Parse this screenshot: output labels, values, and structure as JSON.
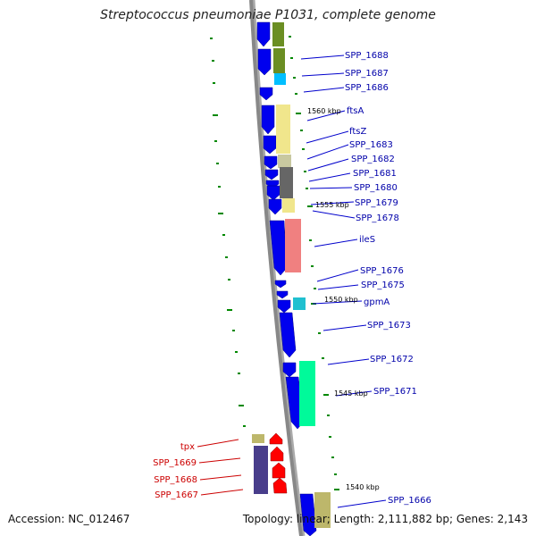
{
  "title": "Streptococcus pneumoniae P1031, complete genome",
  "footer": {
    "accession": "Accession: NC_012467",
    "summary": "Topology: linear; Length: 2,111,882 bp; Genes: 2,143"
  },
  "colors": {
    "forward_gene": "#0000ee",
    "reverse_gene": "#ff0000",
    "forward_label": "#0000aa",
    "reverse_label": "#cc0000",
    "tick": "#008800",
    "backbone": "#888888"
  },
  "scale_labels": [
    "1560 kbp",
    "1555 kbp",
    "1550 kbp",
    "1545 kbp",
    "1540 kbp"
  ],
  "forward_labels": [
    "SPP_1688",
    "SPP_1687",
    "SPP_1686",
    "ftsA",
    "ftsZ",
    "SPP_1683",
    "SPP_1682",
    "SPP_1681",
    "SPP_1680",
    "SPP_1679",
    "SPP_1678",
    "ileS",
    "SPP_1676",
    "SPP_1675",
    "gpmA",
    "SPP_1673",
    "SPP_1672",
    "SPP_1671",
    "SPP_1666"
  ],
  "reverse_labels": [
    "tpx",
    "SPP_1669",
    "SPP_1668",
    "SPP_1667"
  ]
}
